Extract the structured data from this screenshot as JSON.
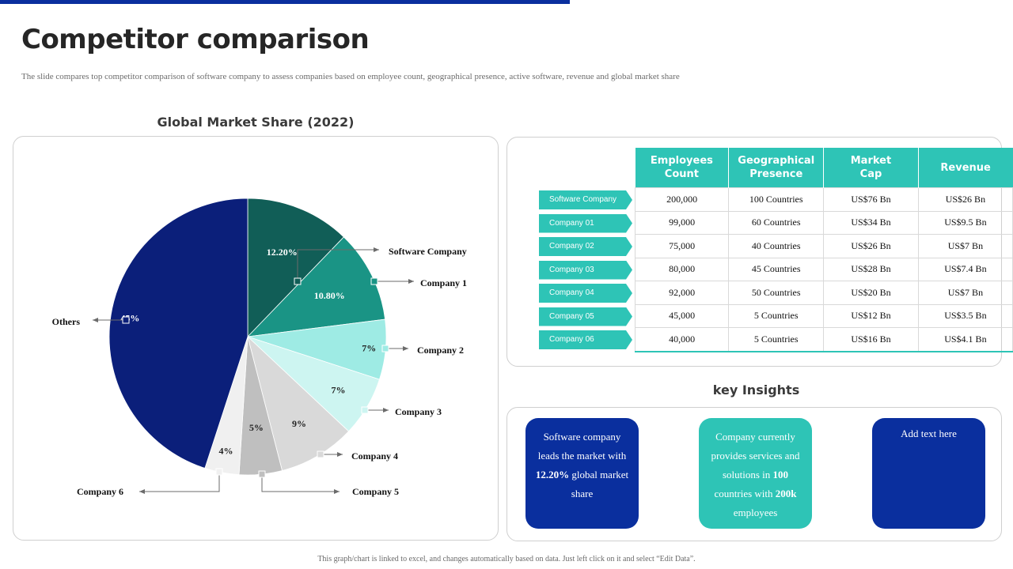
{
  "header": {
    "title": "Competitor comparison",
    "subtitle": "The slide compares top competitor comparison of software company to assess companies based on employee count, geographical  presence, active software, revenue and global  market share"
  },
  "chart_data": {
    "type": "pie",
    "title": "Global Market Share (2022)",
    "slices": [
      {
        "label": "Software Company",
        "value": 12.2,
        "value_label": "12.20%",
        "color": "#115e57"
      },
      {
        "label": "Company 1",
        "value": 10.8,
        "value_label": "10.80%",
        "color": "#1a9485"
      },
      {
        "label": "Company 2",
        "value": 7,
        "value_label": "7%",
        "color": "#9eebe4"
      },
      {
        "label": "Company 3",
        "value": 7,
        "value_label": "7%",
        "color": "#cdf5f1"
      },
      {
        "label": "Company 4",
        "value": 9,
        "value_label": "9%",
        "color": "#d9d9d9"
      },
      {
        "label": "Company 5",
        "value": 5,
        "value_label": "5%",
        "color": "#bfbfbf"
      },
      {
        "label": "Company 6",
        "value": 4,
        "value_label": "4%",
        "color": "#f0f0f0"
      },
      {
        "label": "Others",
        "value": 45,
        "value_label": "45%",
        "color": "#0b1f7a"
      }
    ]
  },
  "table": {
    "headers": [
      [
        "Employees",
        "Count"
      ],
      [
        "Geographical",
        "Presence"
      ],
      [
        "Market",
        "Cap"
      ],
      [
        "Revenue"
      ]
    ],
    "row_labels": [
      "Software Company",
      "Company 01",
      "Company 02",
      "Company 03",
      "Company 04",
      "Company 05",
      "Company 06"
    ],
    "rows": [
      [
        "200,000",
        "100 Countries",
        "US$76 Bn",
        "US$26 Bn"
      ],
      [
        "99,000",
        "60 Countries",
        "US$34 Bn",
        "US$9.5 Bn"
      ],
      [
        "75,000",
        "40 Countries",
        "US$26 Bn",
        "US$7 Bn"
      ],
      [
        "80,000",
        "45 Countries",
        "US$28 Bn",
        "US$7.4 Bn"
      ],
      [
        "92,000",
        "50 Countries",
        "US$20 Bn",
        "US$7 Bn"
      ],
      [
        "45,000",
        "5 Countries",
        "US$12 Bn",
        "US$3.5 Bn"
      ],
      [
        "40,000",
        "5 Countries",
        "US$16 Bn",
        "US$4.1 Bn"
      ]
    ]
  },
  "insights": {
    "title": "key Insights",
    "card1": {
      "pre": "Software company leads the market  with ",
      "bold": "12.20%",
      "post": " global market  share"
    },
    "card2": {
      "pre": "Company currently provides services and solutions in ",
      "bold1": "100",
      "mid": " countries with ",
      "bold2": "200k",
      "post": " employees"
    },
    "card3": {
      "text": "Add text here"
    }
  },
  "footer": "This graph/chart is linked to excel, and changes automatically based on data. Just left click on it and select “Edit Data”.",
  "colors": {
    "accent_teal": "#2ec4b6",
    "accent_blue": "#0a2f9e"
  }
}
